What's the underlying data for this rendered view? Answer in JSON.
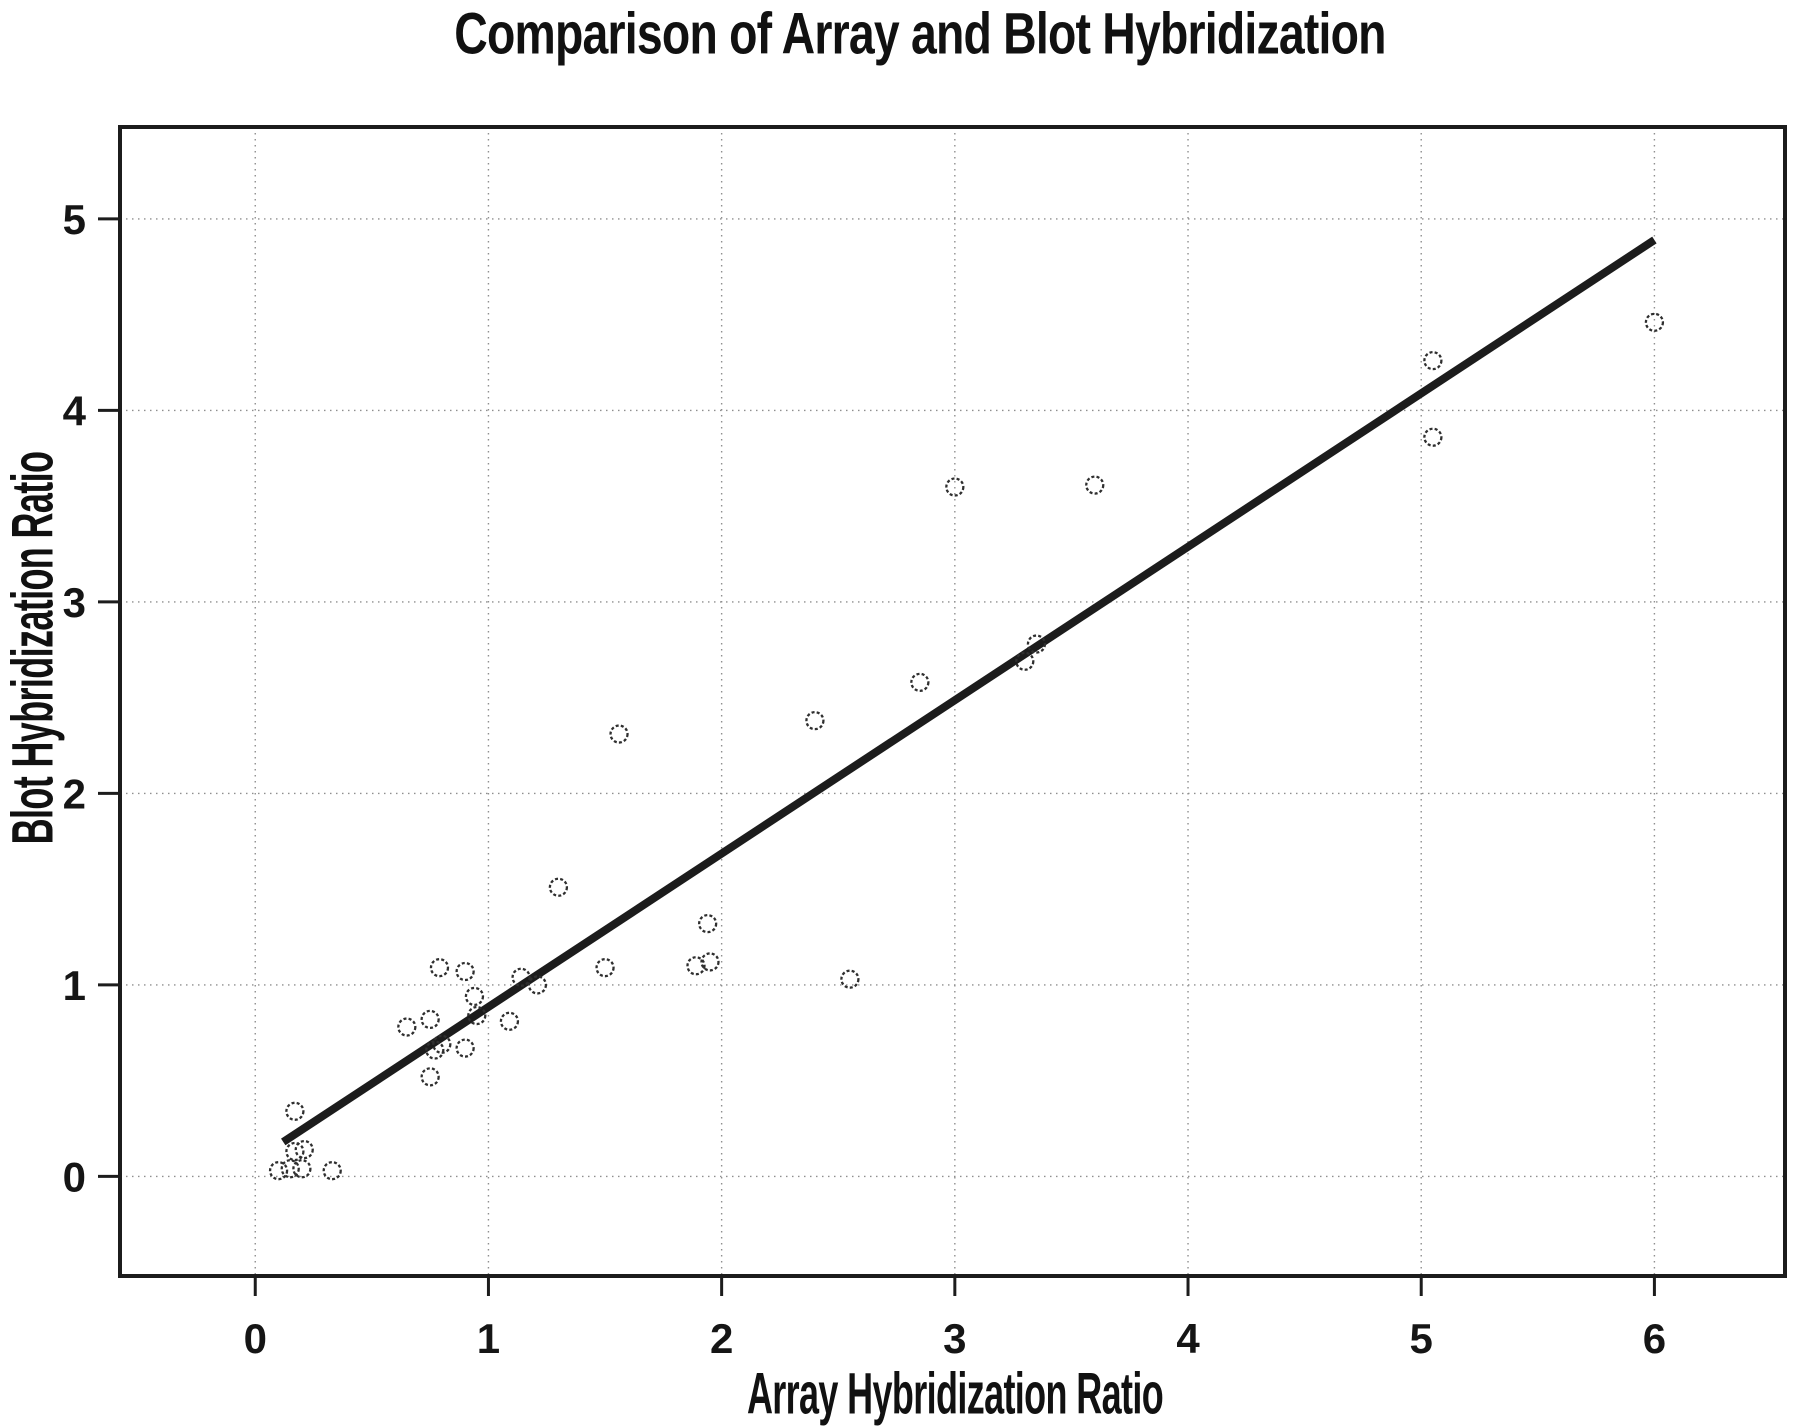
{
  "figure": {
    "title": "Comparison of Array and Blot Hybridization",
    "x_axis_label": "Array Hybridization Ratio",
    "y_axis_label": "Blot Hybridization Ratio"
  },
  "chart_data": {
    "type": "scatter",
    "title": "Comparison of Array and Blot Hybridization",
    "xlabel": "Array Hybridization Ratio",
    "ylabel": "Blot Hybridization Ratio",
    "xlim": [
      -0.58,
      6.56
    ],
    "ylim": [
      -0.52,
      5.48
    ],
    "x_ticks": [
      0,
      1,
      2,
      3,
      4,
      5,
      6
    ],
    "y_ticks": [
      0,
      1,
      2,
      3,
      4,
      5
    ],
    "grid": "dotted-at-integer-ticks",
    "legend": "none",
    "marker": "open-circle-dashed",
    "points": [
      [
        0.1,
        0.03
      ],
      [
        0.15,
        0.04
      ],
      [
        0.2,
        0.04
      ],
      [
        0.17,
        0.13
      ],
      [
        0.21,
        0.14
      ],
      [
        0.17,
        0.34
      ],
      [
        0.33,
        0.03
      ],
      [
        0.65,
        0.78
      ],
      [
        0.75,
        0.82
      ],
      [
        0.77,
        0.66
      ],
      [
        0.8,
        0.69
      ],
      [
        0.9,
        0.67
      ],
      [
        0.75,
        0.52
      ],
      [
        0.79,
        1.09
      ],
      [
        0.9,
        1.07
      ],
      [
        0.94,
        0.94
      ],
      [
        0.95,
        0.84
      ],
      [
        1.09,
        0.81
      ],
      [
        1.14,
        1.04
      ],
      [
        1.21,
        1.0
      ],
      [
        1.3,
        1.51
      ],
      [
        1.5,
        1.09
      ],
      [
        1.56,
        2.31
      ],
      [
        1.89,
        1.1
      ],
      [
        1.95,
        1.12
      ],
      [
        1.94,
        1.32
      ],
      [
        2.4,
        2.38
      ],
      [
        2.55,
        1.03
      ],
      [
        2.85,
        2.58
      ],
      [
        3.0,
        3.6
      ],
      [
        3.3,
        2.69
      ],
      [
        3.35,
        2.78
      ],
      [
        3.6,
        3.61
      ],
      [
        5.05,
        4.26
      ],
      [
        5.05,
        3.86
      ],
      [
        6.0,
        4.46
      ]
    ],
    "regression_line": {
      "x1": 0.12,
      "y1": 0.18,
      "x2": 6.0,
      "y2": 4.89
    },
    "colors": {
      "ink": "#1c1c1c",
      "marker": "#2f2f2f",
      "grid": "#8f8f8f",
      "background": "#ffffff"
    }
  }
}
